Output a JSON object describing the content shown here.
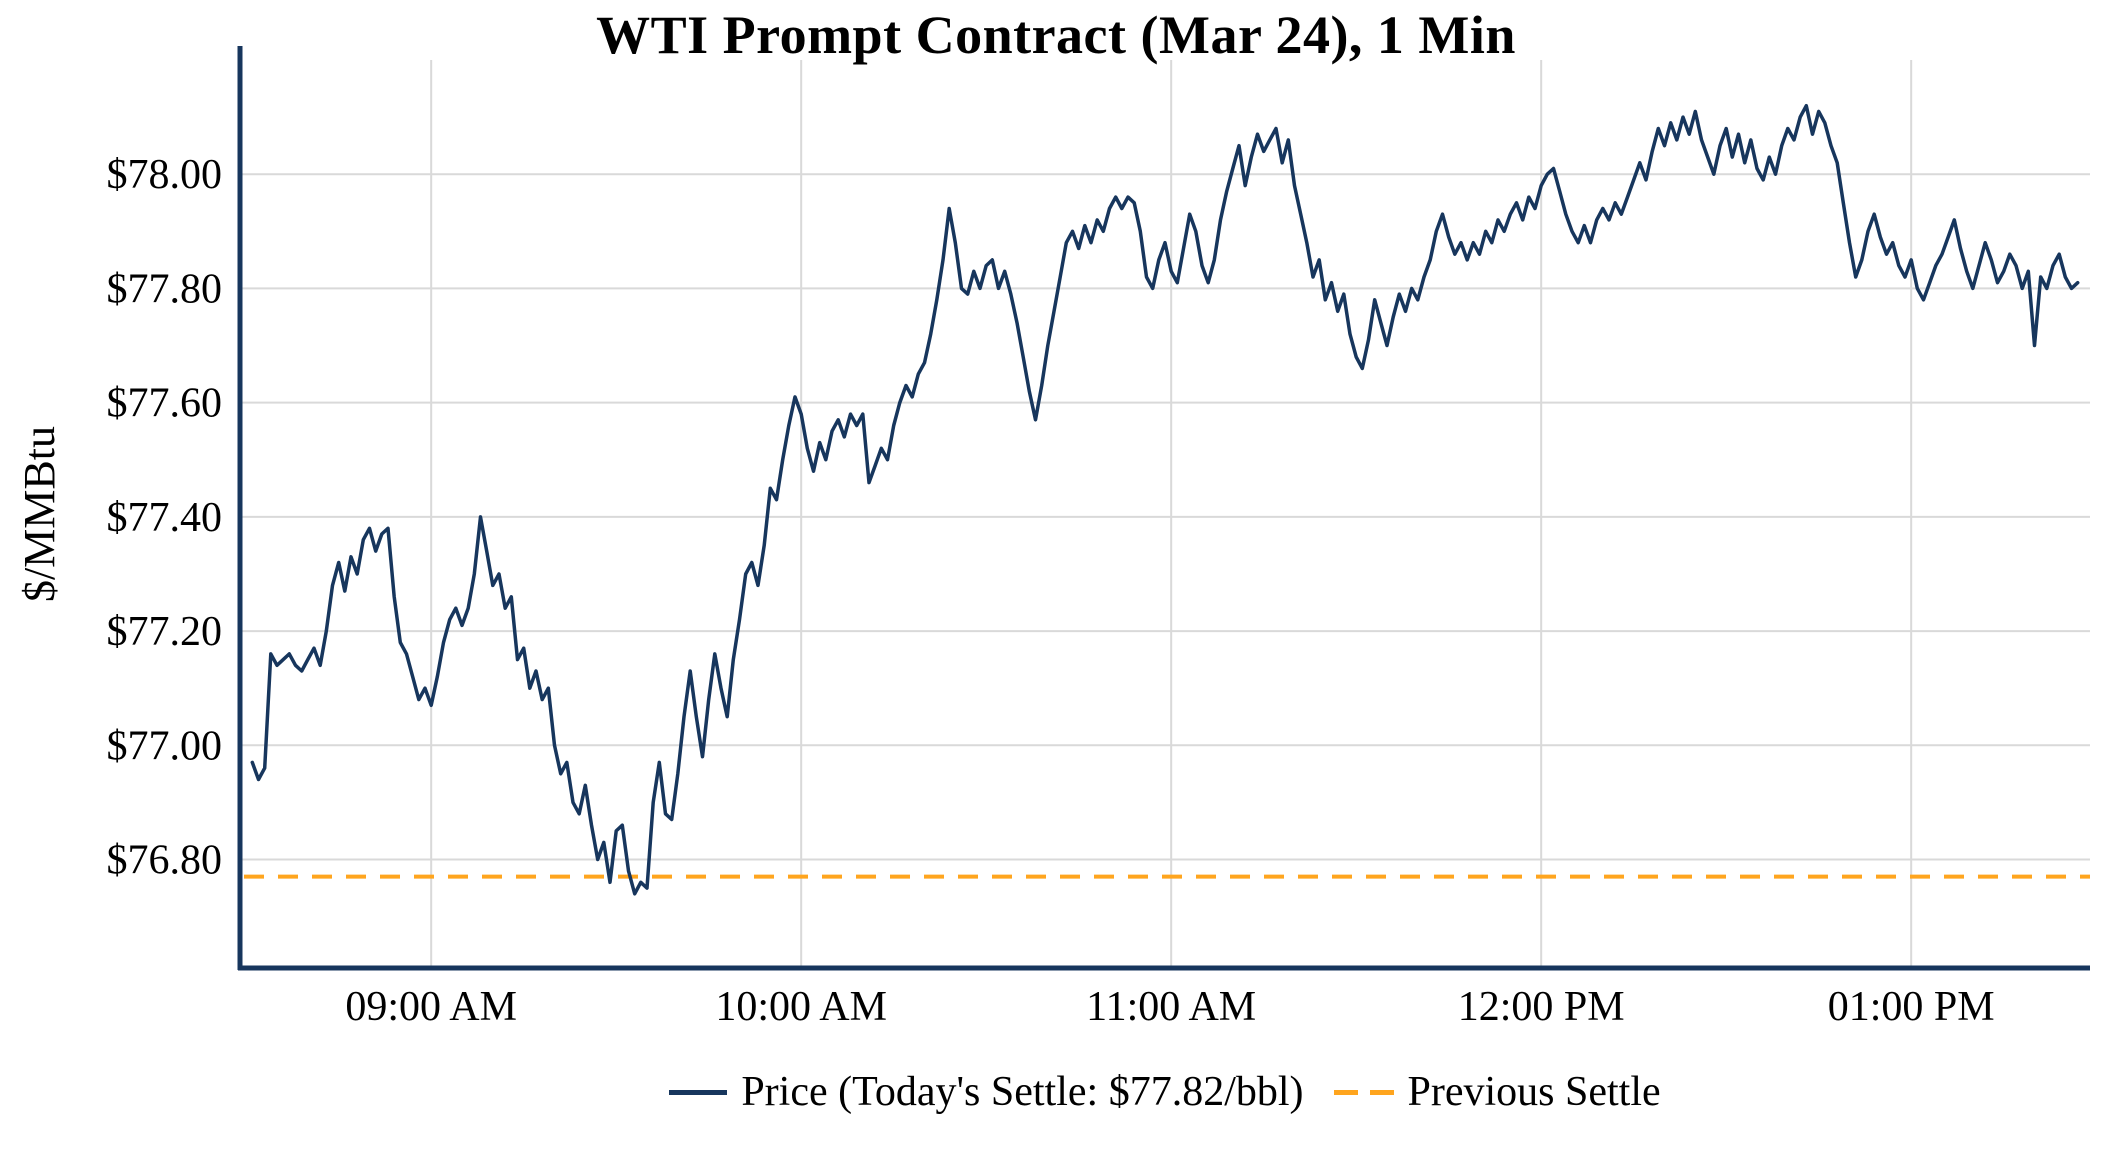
{
  "chart_data": {
    "type": "line",
    "title": "WTI Prompt Contract (Mar 24), 1 Min",
    "xlabel": "",
    "ylabel": "$/MMBtu",
    "grid": true,
    "xlim_minutes": [
      509,
      809
    ],
    "ylim": [
      76.61,
      78.2
    ],
    "x_ticks": [
      {
        "minutes": 540,
        "label": "09:00 AM"
      },
      {
        "minutes": 600,
        "label": "10:00 AM"
      },
      {
        "minutes": 660,
        "label": "11:00 AM"
      },
      {
        "minutes": 720,
        "label": "12:00 PM"
      },
      {
        "minutes": 780,
        "label": "01:00 PM"
      }
    ],
    "y_ticks": [
      {
        "value": 76.8,
        "label": "$76.80"
      },
      {
        "value": 77.0,
        "label": "$77.00"
      },
      {
        "value": 77.2,
        "label": "$77.20"
      },
      {
        "value": 77.4,
        "label": "$77.40"
      },
      {
        "value": 77.6,
        "label": "$77.60"
      },
      {
        "value": 77.8,
        "label": "$77.80"
      },
      {
        "value": 78.0,
        "label": "$78.00"
      }
    ],
    "colors": {
      "price_line": "#17365d",
      "previous_settle": "#ffa51e",
      "grid": "#d9d9d9",
      "axis": "#17365d",
      "text": "#000000"
    },
    "today_settle": 77.82,
    "previous_settle": 76.77,
    "legend": {
      "position": "bottom",
      "price_label": "Price (Today's Settle: $77.82/bbl)",
      "previous_settle_label": "Previous Settle"
    },
    "series": [
      {
        "name": "Price",
        "type": "line",
        "color": "#17365d",
        "t_start_minutes": 511,
        "t_step_minutes": 1,
        "values": [
          76.97,
          76.94,
          76.96,
          77.16,
          77.14,
          77.15,
          77.16,
          77.14,
          77.13,
          77.15,
          77.17,
          77.14,
          77.2,
          77.28,
          77.32,
          77.27,
          77.33,
          77.3,
          77.36,
          77.38,
          77.34,
          77.37,
          77.38,
          77.26,
          77.18,
          77.16,
          77.12,
          77.08,
          77.1,
          77.07,
          77.12,
          77.18,
          77.22,
          77.24,
          77.21,
          77.24,
          77.3,
          77.4,
          77.34,
          77.28,
          77.3,
          77.24,
          77.26,
          77.15,
          77.17,
          77.1,
          77.13,
          77.08,
          77.1,
          77.0,
          76.95,
          76.97,
          76.9,
          76.88,
          76.93,
          76.86,
          76.8,
          76.83,
          76.76,
          76.85,
          76.86,
          76.78,
          76.74,
          76.76,
          76.75,
          76.9,
          76.97,
          76.88,
          76.87,
          76.95,
          77.05,
          77.13,
          77.05,
          76.98,
          77.08,
          77.16,
          77.1,
          77.05,
          77.15,
          77.22,
          77.3,
          77.32,
          77.28,
          77.35,
          77.45,
          77.43,
          77.5,
          77.56,
          77.61,
          77.58,
          77.52,
          77.48,
          77.53,
          77.5,
          77.55,
          77.57,
          77.54,
          77.58,
          77.56,
          77.58,
          77.46,
          77.49,
          77.52,
          77.5,
          77.56,
          77.6,
          77.63,
          77.61,
          77.65,
          77.67,
          77.72,
          77.78,
          77.85,
          77.94,
          77.88,
          77.8,
          77.79,
          77.83,
          77.8,
          77.84,
          77.85,
          77.8,
          77.83,
          77.79,
          77.74,
          77.68,
          77.62,
          77.57,
          77.63,
          77.7,
          77.76,
          77.82,
          77.88,
          77.9,
          77.87,
          77.91,
          77.88,
          77.92,
          77.9,
          77.94,
          77.96,
          77.94,
          77.96,
          77.95,
          77.9,
          77.82,
          77.8,
          77.85,
          77.88,
          77.83,
          77.81,
          77.87,
          77.93,
          77.9,
          77.84,
          77.81,
          77.85,
          77.92,
          77.97,
          78.01,
          78.05,
          77.98,
          78.03,
          78.07,
          78.04,
          78.06,
          78.08,
          78.02,
          78.06,
          77.98,
          77.93,
          77.88,
          77.82,
          77.85,
          77.78,
          77.81,
          77.76,
          77.79,
          77.72,
          77.68,
          77.66,
          77.71,
          77.78,
          77.74,
          77.7,
          77.75,
          77.79,
          77.76,
          77.8,
          77.78,
          77.82,
          77.85,
          77.9,
          77.93,
          77.89,
          77.86,
          77.88,
          77.85,
          77.88,
          77.86,
          77.9,
          77.88,
          77.92,
          77.9,
          77.93,
          77.95,
          77.92,
          77.96,
          77.94,
          77.98,
          78.0,
          78.01,
          77.97,
          77.93,
          77.9,
          77.88,
          77.91,
          77.88,
          77.92,
          77.94,
          77.92,
          77.95,
          77.93,
          77.96,
          77.99,
          78.02,
          77.99,
          78.04,
          78.08,
          78.05,
          78.09,
          78.06,
          78.1,
          78.07,
          78.11,
          78.06,
          78.03,
          78.0,
          78.05,
          78.08,
          78.03,
          78.07,
          78.02,
          78.06,
          78.01,
          77.99,
          78.03,
          78.0,
          78.05,
          78.08,
          78.06,
          78.1,
          78.12,
          78.07,
          78.11,
          78.09,
          78.05,
          78.02,
          77.95,
          77.88,
          77.82,
          77.85,
          77.9,
          77.93,
          77.89,
          77.86,
          77.88,
          77.84,
          77.82,
          77.85,
          77.8,
          77.78,
          77.81,
          77.84,
          77.86,
          77.89,
          77.92,
          77.87,
          77.83,
          77.8,
          77.84,
          77.88,
          77.85,
          77.81,
          77.83,
          77.86,
          77.84,
          77.8,
          77.83,
          77.7,
          77.82,
          77.8,
          77.84,
          77.86,
          77.82,
          77.8,
          77.81
        ]
      },
      {
        "name": "Previous Settle",
        "type": "hline",
        "color": "#ffa51e",
        "dashed": true,
        "value": 76.77
      }
    ]
  }
}
